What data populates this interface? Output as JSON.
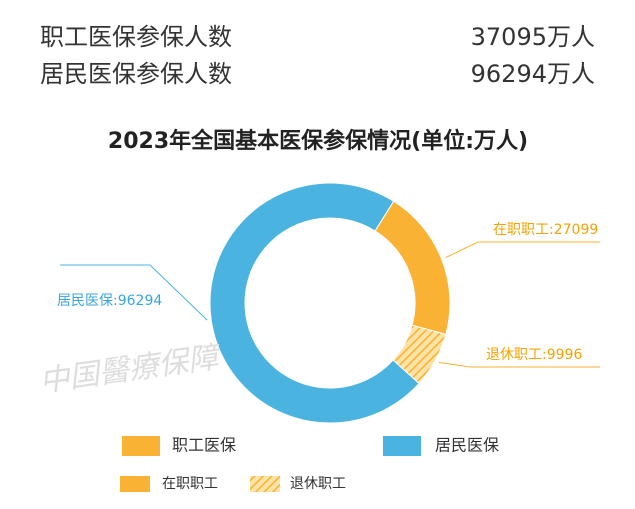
{
  "summary": [
    {
      "label": "职工医保参保人数",
      "text": "37095万人"
    },
    {
      "label": "居民医保参保人数",
      "text": "96294万人"
    }
  ],
  "watermark": "中国醫療保障",
  "chart_data": {
    "type": "pie",
    "title": "2023年全国基本医保参保情况(单位:万人)",
    "donut": true,
    "categories": [
      "在职职工",
      "退休职工",
      "居民医保"
    ],
    "values": [
      27099,
      9996,
      96294
    ],
    "value_labels": [
      "在职职工:27099",
      "退休职工:9996",
      "居民医保:96294"
    ],
    "colors": [
      "#f9b233",
      "#f9b233",
      "#4ab3e0"
    ],
    "hatched": [
      false,
      true,
      false
    ],
    "legend": [
      {
        "name": "职工医保",
        "color": "#f9b233",
        "hatched": false
      },
      {
        "name": "居民医保",
        "color": "#4ab3e0",
        "hatched": false
      },
      {
        "name": "在职职工",
        "color": "#f9b233",
        "hatched": false
      },
      {
        "name": "退休职工",
        "color": "#f9b233",
        "hatched": true
      }
    ]
  }
}
